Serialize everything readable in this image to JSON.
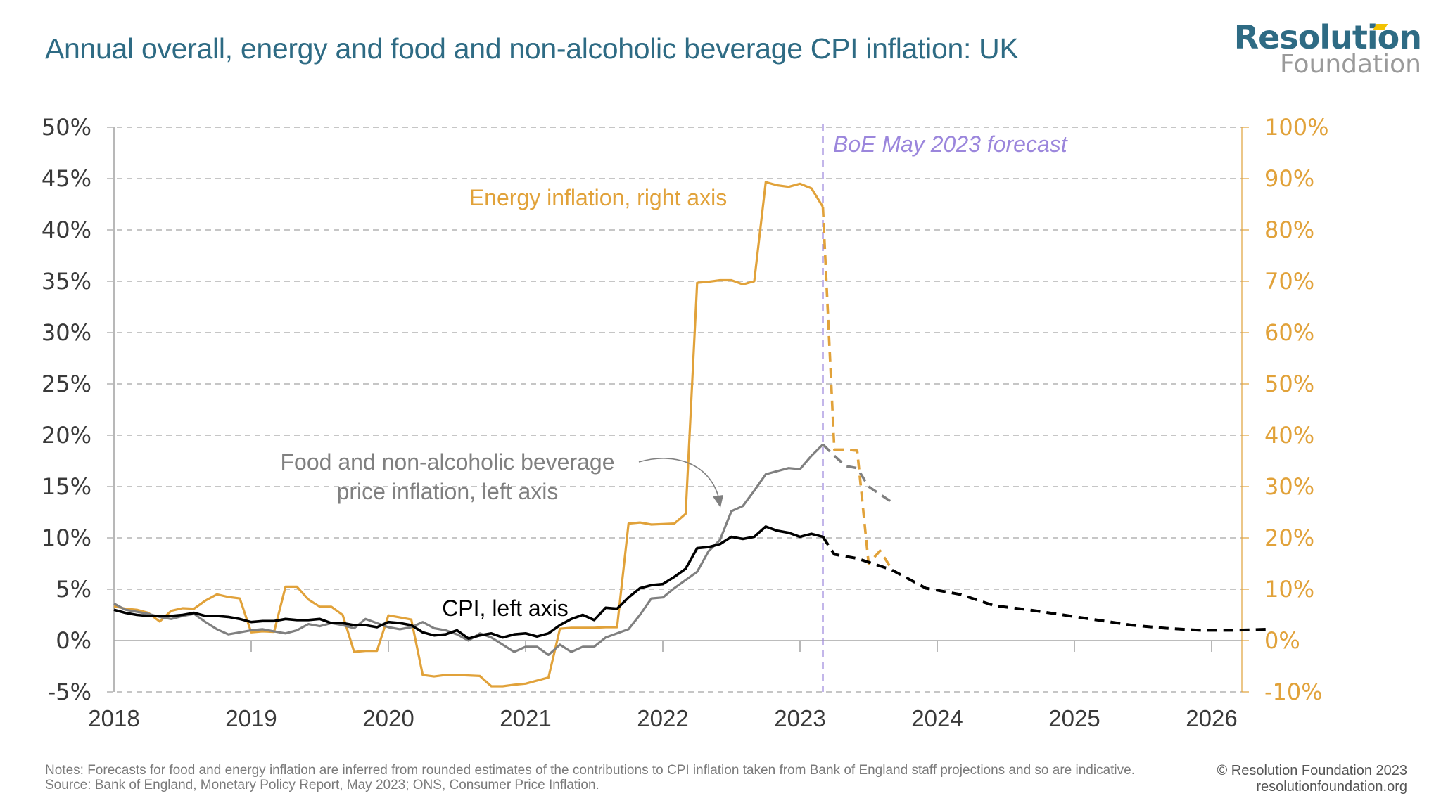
{
  "header": {
    "title": "Annual overall, energy and food and non-alcoholic beverage CPI inflation: UK",
    "logo_main": "Resolution",
    "logo_sub": "Foundation"
  },
  "chart_data": {
    "type": "line",
    "title": "Annual overall, energy and food and non-alcoholic beverage CPI inflation: UK",
    "xlabel": "",
    "ylabel": "",
    "x_start": "2018-01",
    "x_end": "2026-03",
    "x_ticks": [
      "2018",
      "2019",
      "2020",
      "2021",
      "2022",
      "2023",
      "2024",
      "2025",
      "2026"
    ],
    "y_left": {
      "range": [
        -5,
        50
      ],
      "ticks": [
        -5,
        0,
        5,
        10,
        15,
        20,
        25,
        30,
        35,
        40,
        45,
        50
      ],
      "tick_labels": [
        "-5%",
        "0%",
        "5%",
        "10%",
        "15%",
        "20%",
        "25%",
        "30%",
        "35%",
        "40%",
        "45%",
        "50%"
      ]
    },
    "y_right": {
      "range": [
        -10,
        100
      ],
      "ticks": [
        -10,
        0,
        10,
        20,
        30,
        40,
        50,
        60,
        70,
        80,
        90,
        100
      ],
      "tick_labels": [
        "-10%",
        "0%",
        "10%",
        "20%",
        "30%",
        "40%",
        "50%",
        "60%",
        "70%",
        "80%",
        "90%",
        "100%"
      ]
    },
    "grid": true,
    "forecast_marker": {
      "date": "2023-03",
      "label": "BoE May 2023 forecast"
    },
    "series": [
      {
        "name": "CPI",
        "axis": "left",
        "label": "CPI, left axis",
        "color": "#000000",
        "actual": {
          "start": "2018-01",
          "values": [
            3.0,
            2.7,
            2.5,
            2.4,
            2.4,
            2.4,
            2.5,
            2.7,
            2.4,
            2.4,
            2.3,
            2.1,
            1.8,
            1.9,
            1.9,
            2.1,
            2.0,
            2.0,
            2.1,
            1.7,
            1.7,
            1.5,
            1.5,
            1.3,
            1.8,
            1.7,
            1.5,
            0.8,
            0.5,
            0.6,
            1.0,
            0.2,
            0.5,
            0.7,
            0.3,
            0.6,
            0.7,
            0.4,
            0.7,
            1.5,
            2.1,
            2.5,
            2.0,
            3.2,
            3.1,
            4.2,
            5.1,
            5.4,
            5.5,
            6.2,
            7.0,
            9.0,
            9.1,
            9.4,
            10.1,
            9.9,
            10.1,
            11.1,
            10.7,
            10.5,
            10.1,
            10.4,
            10.1
          ]
        },
        "forecast": {
          "points": [
            [
              "2023-03",
              10.1
            ],
            [
              "2023-04",
              8.4
            ],
            [
              "2023-06",
              8.0
            ],
            [
              "2023-09",
              6.9
            ],
            [
              "2023-12",
              5.1
            ],
            [
              "2024-03",
              4.5
            ],
            [
              "2024-06",
              3.4
            ],
            [
              "2024-09",
              3.0
            ],
            [
              "2024-12",
              2.5
            ],
            [
              "2025-03",
              2.0
            ],
            [
              "2025-06",
              1.5
            ],
            [
              "2025-09",
              1.2
            ],
            [
              "2025-12",
              1.0
            ],
            [
              "2026-03",
              1.0
            ],
            [
              "2026-06",
              1.1
            ]
          ]
        }
      },
      {
        "name": "Food and non-alcoholic beverage price inflation",
        "axis": "left",
        "label": "Food and non-alcoholic beverage price inflation, left axis",
        "color": "#808080",
        "actual": {
          "start": "2018-01",
          "values": [
            3.6,
            3.0,
            2.8,
            2.6,
            2.3,
            2.1,
            2.4,
            2.6,
            1.8,
            1.1,
            0.6,
            0.8,
            1.0,
            1.1,
            0.9,
            0.7,
            1.0,
            1.6,
            1.4,
            1.7,
            1.5,
            1.2,
            2.1,
            1.7,
            1.3,
            1.1,
            1.3,
            1.8,
            1.2,
            1.0,
            0.6,
            0.0,
            0.7,
            0.3,
            -0.4,
            -1.1,
            -0.6,
            -0.6,
            -1.4,
            -0.4,
            -1.1,
            -0.6,
            -0.6,
            0.3,
            0.7,
            1.1,
            2.5,
            4.1,
            4.2,
            5.1,
            5.9,
            6.7,
            8.7,
            9.8,
            12.6,
            13.1,
            14.6,
            16.2,
            16.5,
            16.8,
            16.7,
            18.0,
            19.1
          ]
        },
        "forecast": {
          "points": [
            [
              "2023-03",
              19.1
            ],
            [
              "2023-04",
              18.0
            ],
            [
              "2023-05",
              17.0
            ],
            [
              "2023-06",
              16.8
            ],
            [
              "2023-07",
              15.0
            ],
            [
              "2023-09",
              13.5
            ]
          ]
        }
      },
      {
        "name": "Energy inflation",
        "axis": "right",
        "label": "Energy inflation, right axis",
        "color": "#e1a23a",
        "actual": {
          "start": "2018-01",
          "values": [
            6.7,
            6.2,
            6.0,
            5.4,
            3.7,
            5.8,
            6.3,
            6.2,
            7.8,
            9.0,
            8.5,
            8.2,
            1.6,
            1.8,
            1.7,
            10.5,
            10.5,
            8.0,
            6.6,
            6.6,
            5.0,
            -2.2,
            -2.0,
            -2.0,
            4.9,
            4.5,
            4.1,
            -6.7,
            -7.0,
            -6.7,
            -6.7,
            -6.8,
            -6.9,
            -8.9,
            -8.9,
            -8.6,
            -8.4,
            -7.8,
            -7.2,
            2.3,
            2.5,
            2.5,
            2.5,
            2.6,
            2.6,
            22.8,
            23.0,
            22.6,
            22.7,
            22.8,
            24.7,
            69.7,
            69.9,
            70.2,
            70.2,
            69.4,
            70.0,
            89.3,
            88.7,
            88.4,
            89.0,
            88.1,
            84.5
          ]
        },
        "forecast": {
          "points": [
            [
              "2023-03",
              84.5
            ],
            [
              "2023-04",
              37.2
            ],
            [
              "2023-05",
              37.2
            ],
            [
              "2023-06",
              37.0
            ],
            [
              "2023-07",
              15.0
            ],
            [
              "2023-08",
              17.5
            ],
            [
              "2023-09",
              14.0
            ]
          ]
        }
      }
    ],
    "annotations": [
      {
        "text": "Energy inflation, right axis",
        "color": "#e1a23a"
      },
      {
        "text": "Food and non-alcoholic beverage",
        "color": "#808080"
      },
      {
        "text": "price inflation, left axis",
        "color": "#808080"
      },
      {
        "text": "CPI, left axis",
        "color": "#000000"
      },
      {
        "text": "BoE May 2023 forecast",
        "color": "#9b86dc"
      }
    ]
  },
  "footer": {
    "notes": "Notes: Forecasts for food and energy inflation are inferred from rounded estimates of the contributions to CPI inflation taken from Bank of England staff projections and so are indicative.",
    "source": "Source: Bank of England, Monetary Policy Report, May 2023; ONS, Consumer Price Inflation.",
    "copyright": "© Resolution Foundation 2023",
    "website": "resolutionfoundation.org"
  },
  "colors": {
    "brand": "#2e6b84",
    "energy": "#e1a23a",
    "food": "#808080",
    "cpi": "#000000",
    "forecast_line": "#9b86dc",
    "grid": "#b3b3b3",
    "logo_accent": "#f2c200"
  }
}
